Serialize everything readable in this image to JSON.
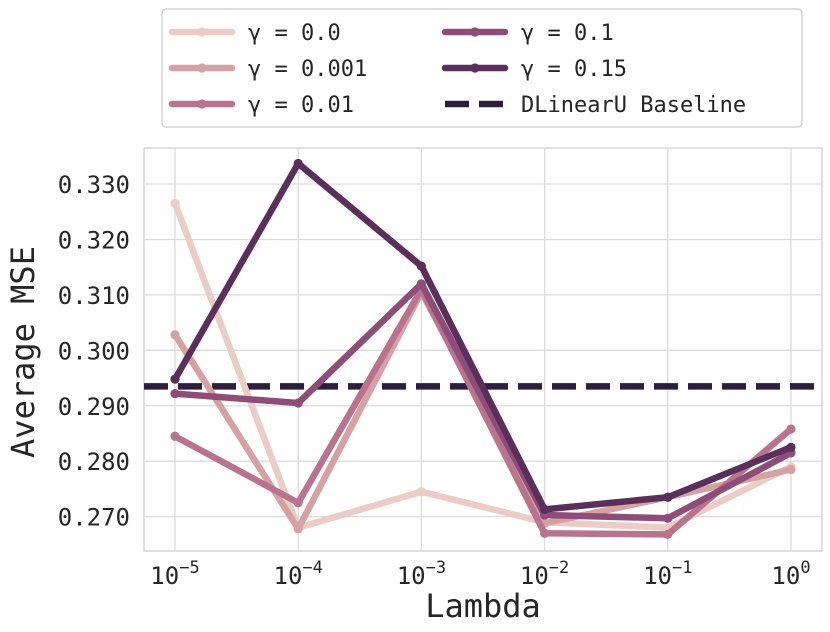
{
  "chart_data": {
    "type": "line",
    "title": "",
    "xlabel": "Lambda",
    "ylabel": "Average MSE",
    "xscale": "log",
    "x": [
      1e-05,
      0.0001,
      0.001,
      0.01,
      0.1,
      1
    ],
    "xtick_labels": [
      {
        "base": "10",
        "exp": "−5"
      },
      {
        "base": "10",
        "exp": "−4"
      },
      {
        "base": "10",
        "exp": "−3"
      },
      {
        "base": "10",
        "exp": "−2"
      },
      {
        "base": "10",
        "exp": "−1"
      },
      {
        "base": "10",
        "exp": "0"
      }
    ],
    "yticks": [
      0.27,
      0.28,
      0.29,
      0.3,
      0.31,
      0.32,
      0.33
    ],
    "ytick_labels": [
      "0.270",
      "0.280",
      "0.290",
      "0.300",
      "0.310",
      "0.320",
      "0.330"
    ],
    "ylim": [
      0.2638,
      0.3365
    ],
    "grid": true,
    "legend_position": "top-center, above plot, 2 columns",
    "series": [
      {
        "name": "γ = 0.0",
        "color": "#ebcdc6",
        "values": [
          0.3265,
          0.268,
          0.2745,
          0.269,
          0.268,
          0.279
        ]
      },
      {
        "name": "γ = 0.001",
        "color": "#d6a1a3",
        "values": [
          0.3028,
          0.2678,
          0.3105,
          0.2688,
          0.2735,
          0.2785
        ]
      },
      {
        "name": "γ = 0.01",
        "color": "#b9748d",
        "values": [
          0.2845,
          0.2725,
          0.311,
          0.267,
          0.2668,
          0.2858
        ]
      },
      {
        "name": "γ = 0.1",
        "color": "#8e4d79",
        "values": [
          0.2922,
          0.2905,
          0.312,
          0.2703,
          0.2697,
          0.2815
        ]
      },
      {
        "name": "γ = 0.15",
        "color": "#5a2f5c",
        "values": [
          0.2948,
          0.3337,
          0.3152,
          0.2713,
          0.2735,
          0.2825
        ]
      }
    ],
    "baseline": {
      "name": "DLinearU Baseline",
      "value": 0.2935,
      "color": "#2d1e3e",
      "style": "dashed"
    }
  }
}
